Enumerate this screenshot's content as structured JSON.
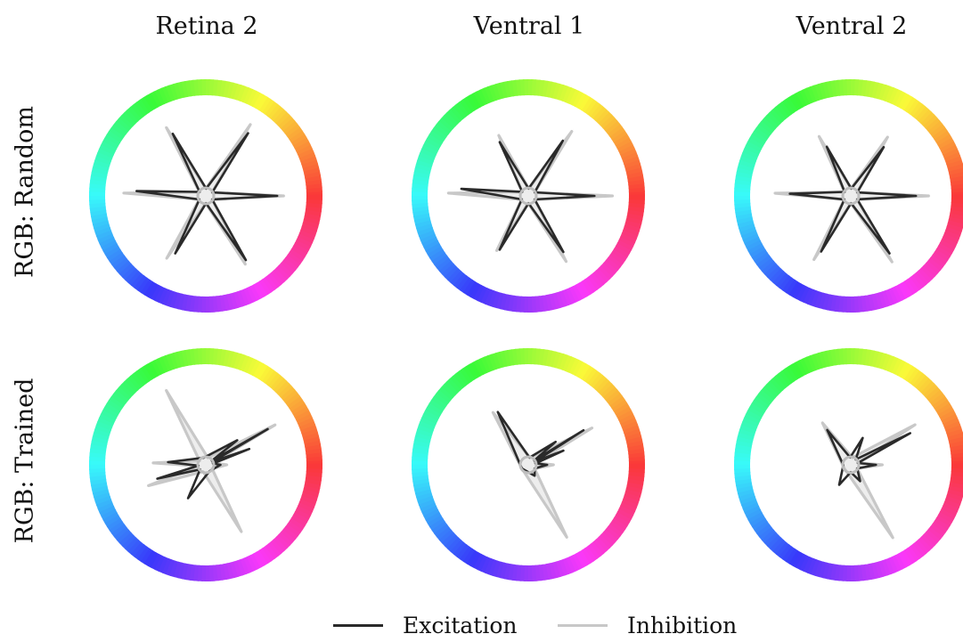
{
  "columns": [
    "Retina 2",
    "Ventral 1",
    "Ventral 2"
  ],
  "rows": [
    "RGB: Random",
    "RGB: Trained"
  ],
  "legend": {
    "excitation": {
      "label": "Excitation",
      "color": "#2a2a2a"
    },
    "inhibition": {
      "label": "Inhibition",
      "color": "#c8c8c8"
    }
  },
  "chart_data": {
    "type": "polar-line",
    "angular_axis": "hue",
    "panels": [
      {
        "row": "RGB: Random",
        "column": "Retina 2",
        "excitation": [
          [
            0,
            0.68
          ],
          [
            56,
            0.72
          ],
          [
            118,
            0.67
          ],
          [
            176,
            0.66
          ],
          [
            242,
            0.62
          ],
          [
            302,
            0.72
          ]
        ],
        "inhibition": [
          [
            0,
            0.74
          ],
          [
            58,
            0.8
          ],
          [
            120,
            0.75
          ],
          [
            178,
            0.78
          ],
          [
            238,
            0.7
          ],
          [
            300,
            0.75
          ]
        ]
      },
      {
        "row": "RGB: Random",
        "column": "Ventral 1",
        "excitation": [
          [
            0,
            0.63
          ],
          [
            58,
            0.62
          ],
          [
            118,
            0.58
          ],
          [
            174,
            0.64
          ],
          [
            242,
            0.58
          ],
          [
            302,
            0.63
          ]
        ],
        "inhibition": [
          [
            0,
            0.8
          ],
          [
            56,
            0.74
          ],
          [
            116,
            0.64
          ],
          [
            178,
            0.76
          ],
          [
            240,
            0.6
          ],
          [
            300,
            0.72
          ]
        ]
      },
      {
        "row": "RGB: Random",
        "column": "Ventral 2",
        "excitation": [
          [
            0,
            0.62
          ],
          [
            56,
            0.56
          ],
          [
            116,
            0.52
          ],
          [
            178,
            0.58
          ],
          [
            242,
            0.6
          ],
          [
            304,
            0.66
          ]
        ],
        "inhibition": [
          [
            0,
            0.74
          ],
          [
            58,
            0.66
          ],
          [
            118,
            0.64
          ],
          [
            178,
            0.72
          ],
          [
            240,
            0.7
          ],
          [
            302,
            0.74
          ]
        ]
      },
      {
        "row": "RGB: Trained",
        "column": "Retina 2",
        "excitation": [
          [
            0,
            0.14
          ],
          [
            20,
            0.44
          ],
          [
            30,
            0.68
          ],
          [
            38,
            0.38
          ],
          [
            176,
            0.36
          ],
          [
            196,
            0.48
          ],
          [
            242,
            0.36
          ]
        ],
        "inhibition": [
          [
            0,
            0.2
          ],
          [
            30,
            0.76
          ],
          [
            118,
            0.8
          ],
          [
            178,
            0.5
          ],
          [
            200,
            0.58
          ],
          [
            298,
            0.72
          ]
        ]
      },
      {
        "row": "RGB: Trained",
        "column": "Ventral 1",
        "excitation": [
          [
            0,
            0.18
          ],
          [
            22,
            0.36
          ],
          [
            32,
            0.62
          ],
          [
            40,
            0.34
          ],
          [
            120,
            0.58
          ],
          [
            300,
            0.12
          ]
        ],
        "inhibition": [
          [
            0,
            0.24
          ],
          [
            30,
            0.7
          ],
          [
            124,
            0.6
          ],
          [
            298,
            0.78
          ]
        ]
      },
      {
        "row": "RGB: Trained",
        "column": "Ventral 2",
        "excitation": [
          [
            0,
            0.24
          ],
          [
            28,
            0.64
          ],
          [
            66,
            0.28
          ],
          [
            124,
            0.4
          ],
          [
            240,
            0.22
          ],
          [
            300,
            0.18
          ]
        ],
        "inhibition": [
          [
            0,
            0.3
          ],
          [
            32,
            0.72
          ],
          [
            124,
            0.48
          ],
          [
            300,
            0.8
          ]
        ]
      }
    ]
  }
}
